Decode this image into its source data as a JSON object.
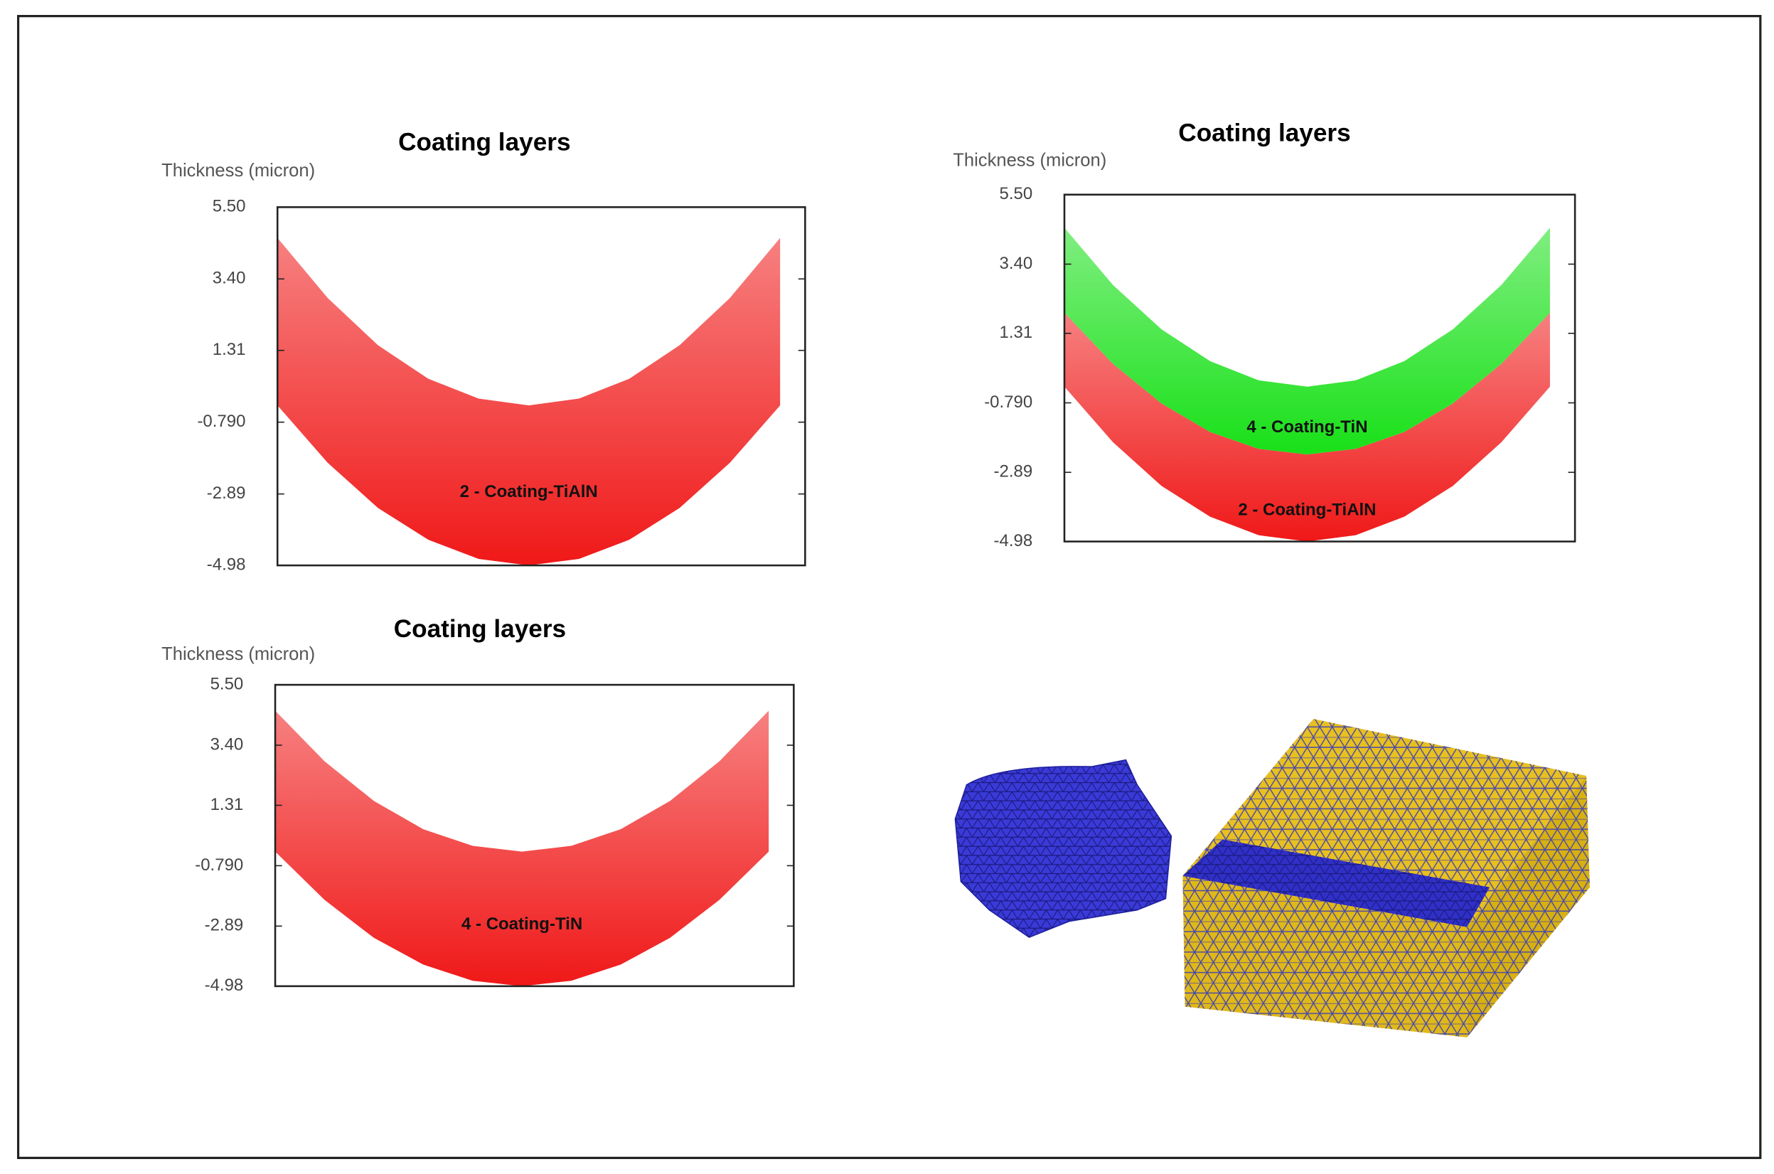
{
  "chart_data": [
    {
      "type": "band",
      "title": "Coating layers",
      "y_label": "Thickness (micron)",
      "ylim": [
        -4.98,
        5.5
      ],
      "yticks": [
        -4.98,
        -2.89,
        {
          "value": -0.79,
          "label": "-0.790"
        },
        1.31,
        {
          "value": 3.4,
          "label": "3.40"
        },
        {
          "value": 5.5,
          "label": "5.50"
        }
      ],
      "categories": [
        null,
        null,
        null,
        null,
        null,
        null,
        null,
        null,
        null,
        null,
        null
      ],
      "series": [
        {
          "name": "2 - Coating-TiAlN",
          "color": "#f01818",
          "upper": [
            4.6,
            2.84,
            1.46,
            0.48,
            -0.1,
            -0.3,
            -0.1,
            0.48,
            1.46,
            2.84,
            4.6
          ],
          "lower": [
            -0.3,
            -1.98,
            -3.3,
            -4.23,
            -4.79,
            -4.98,
            -4.79,
            -4.23,
            -3.3,
            -1.98,
            -0.3
          ]
        }
      ]
    },
    {
      "type": "band",
      "title": "Coating layers",
      "y_label": "Thickness (micron)",
      "ylim": [
        -4.98,
        5.5
      ],
      "yticks": [
        -4.98,
        -2.89,
        {
          "value": -0.79,
          "label": "-0.790"
        },
        1.31,
        {
          "value": 3.4,
          "label": "3.40"
        },
        {
          "value": 5.5,
          "label": "5.50"
        }
      ],
      "categories": [
        null,
        null,
        null,
        null,
        null,
        null,
        null,
        null,
        null,
        null,
        null
      ],
      "series": [
        {
          "name": "2 - Coating-TiAlN",
          "color": "#f01818",
          "upper": [
            1.93,
            0.39,
            -0.81,
            -1.67,
            -2.18,
            -2.35,
            -2.18,
            -1.67,
            -0.81,
            0.39,
            1.93
          ],
          "lower": [
            -0.3,
            -1.98,
            -3.3,
            -4.23,
            -4.79,
            -4.98,
            -4.79,
            -4.23,
            -3.3,
            -1.98,
            -0.3
          ]
        },
        {
          "name": "4 - Coating-TiN",
          "color": "#18e018",
          "upper": [
            4.5,
            2.77,
            1.43,
            0.47,
            -0.11,
            -0.3,
            -0.11,
            0.47,
            1.43,
            2.77,
            4.5
          ],
          "lower": [
            1.93,
            0.39,
            -0.81,
            -1.67,
            -2.18,
            -2.35,
            -2.18,
            -1.67,
            -0.81,
            0.39,
            1.93
          ]
        }
      ]
    },
    {
      "type": "band",
      "title": "Coating layers",
      "y_label": "Thickness (micron)",
      "ylim": [
        -4.98,
        5.5
      ],
      "yticks": [
        -4.98,
        -2.89,
        {
          "value": -0.79,
          "label": "-0.790"
        },
        1.31,
        {
          "value": 3.4,
          "label": "3.40"
        },
        {
          "value": 5.5,
          "label": "5.50"
        }
      ],
      "categories": [
        null,
        null,
        null,
        null,
        null,
        null,
        null,
        null,
        null,
        null,
        null
      ],
      "series": [
        {
          "name": "4 - Coating-TiN",
          "color": "#f01818",
          "upper": [
            4.6,
            2.84,
            1.46,
            0.48,
            -0.1,
            -0.3,
            -0.1,
            0.48,
            1.46,
            2.84,
            4.6
          ],
          "lower": [
            -0.3,
            -1.98,
            -3.3,
            -4.23,
            -4.79,
            -4.98,
            -4.79,
            -4.23,
            -3.3,
            -1.98,
            -0.3
          ]
        }
      ]
    }
  ]
}
